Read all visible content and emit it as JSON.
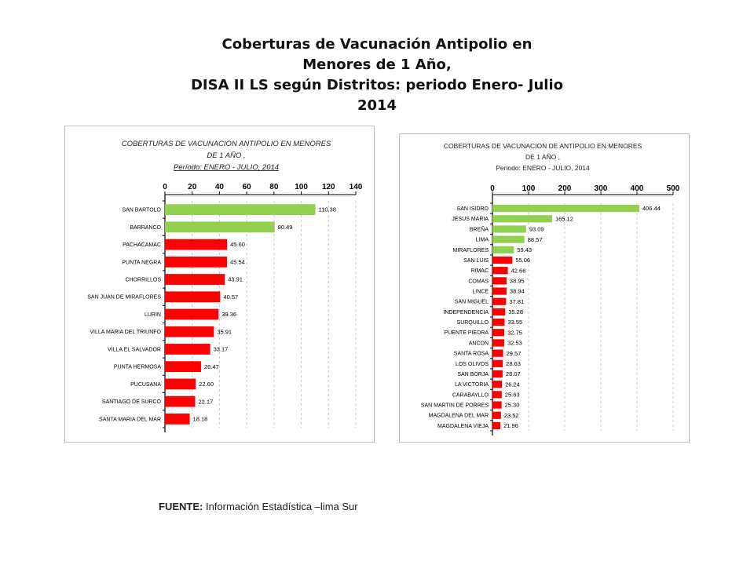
{
  "title_lines": [
    "Coberturas de Vacunación Antipolio en",
    "Menores de 1 Año,",
    "DISA II LS según Distritos: periodo Enero- Julio",
    "2014"
  ],
  "footer": {
    "label": "FUENTE:",
    "text": " Información Estadística –lima Sur"
  },
  "colors": {
    "green": "#92d050",
    "red": "#ff0000"
  },
  "chart_data": [
    {
      "type": "bar",
      "orientation": "horizontal",
      "title": [
        "COBERTURAS  DE  VACUNACION  ANTIPOLIO  EN  MENORES",
        "DE 1 AÑO ,",
        "Período: ENERO  -  JULIO,  2014"
      ],
      "xlim": [
        0,
        140
      ],
      "ticks": [
        "0",
        "20",
        "40",
        "60",
        "80",
        "100",
        "120",
        "140"
      ],
      "tick_values": [
        0,
        20,
        40,
        60,
        80,
        100,
        120,
        140
      ],
      "categories": [
        "SAN BARTOLO",
        "BARRANCO",
        "PACHACAMAC",
        "PUNTA NEGRA",
        "CHORRILLOS",
        "SAN JUAN DE MIRAFLORES",
        "LURIN",
        "VILLA MARIA DEL TRIUNFO",
        "VILLA EL SALVADOR",
        "PUNTA HERMOSA",
        "PUCUSANA",
        "SANTIAGO DE SURCO",
        "SANTA MARIA DEL MAR"
      ],
      "values": [
        110.38,
        80.49,
        45.6,
        45.54,
        43.91,
        40.57,
        39.36,
        35.91,
        33.17,
        26.47,
        22.6,
        22.17,
        18.18
      ],
      "labels": [
        "110.38",
        "80.49",
        "45.60",
        "45.54",
        "43.91",
        "40.57",
        "39.36",
        "35.91",
        "33.17",
        "26.47",
        "22.60",
        "22.17",
        "18.18"
      ],
      "bar_colors": [
        "#92d050",
        "#92d050",
        "#ff0000",
        "#ff0000",
        "#ff0000",
        "#ff0000",
        "#ff0000",
        "#ff0000",
        "#ff0000",
        "#ff0000",
        "#ff0000",
        "#ff0000",
        "#ff0000"
      ]
    },
    {
      "type": "bar",
      "orientation": "horizontal",
      "title": [
        "COBERTURAS DE VACUNACION DE ANTIPOLIO EN MENORES",
        "DE 1 AÑO ,",
        "Periodo:  ENERO - JULIO, 2014"
      ],
      "xlim": [
        0,
        500
      ],
      "ticks": [
        "0",
        "100",
        "200",
        "300",
        "400",
        "500"
      ],
      "tick_values": [
        0,
        100,
        200,
        300,
        400,
        500
      ],
      "categories": [
        "SAN ISIDRO",
        "JESUS MARIA",
        "BREÑA",
        "LIMA",
        "MIRAFLORES",
        "SAN LUIS",
        "RIMAC",
        "COMAS",
        "LINCE",
        "SAN MIGUEL",
        "INDEPENDENCIA",
        "SURQUILLO",
        "PUENTE PIEDRA",
        "ANCON",
        "SANTA ROSA",
        "LOS OLIVOS",
        "SAN BORJA",
        "LA VICTORIA",
        "CARABAYLLO",
        "SAN MARTIN DE PORRES",
        "MAGDALENA DEL MAR",
        "MAGDALENA VIEJA"
      ],
      "values": [
        406.44,
        165.12,
        93.09,
        88.57,
        59.43,
        55.06,
        42.66,
        38.95,
        38.94,
        37.81,
        35.28,
        33.55,
        32.75,
        32.53,
        29.57,
        28.63,
        28.07,
        26.24,
        25.63,
        25.3,
        23.52,
        21.96
      ],
      "labels": [
        "406.44",
        "165.12",
        "93.09",
        "88.57",
        "59.43",
        "55.06",
        "42.66",
        "38.95",
        "38.94",
        "37.81",
        "35.28",
        "33.55",
        "32.75",
        "32.53",
        "29.57",
        "28.63",
        "28.07",
        "26.24",
        "25.63",
        "25.30",
        "23.52",
        "21.96"
      ],
      "bar_colors": [
        "#92d050",
        "#92d050",
        "#92d050",
        "#92d050",
        "#92d050",
        "#ff0000",
        "#ff0000",
        "#ff0000",
        "#ff0000",
        "#ff0000",
        "#ff0000",
        "#ff0000",
        "#ff0000",
        "#ff0000",
        "#ff0000",
        "#ff0000",
        "#ff0000",
        "#ff0000",
        "#ff0000",
        "#ff0000",
        "#ff0000",
        "#ff0000"
      ]
    }
  ]
}
